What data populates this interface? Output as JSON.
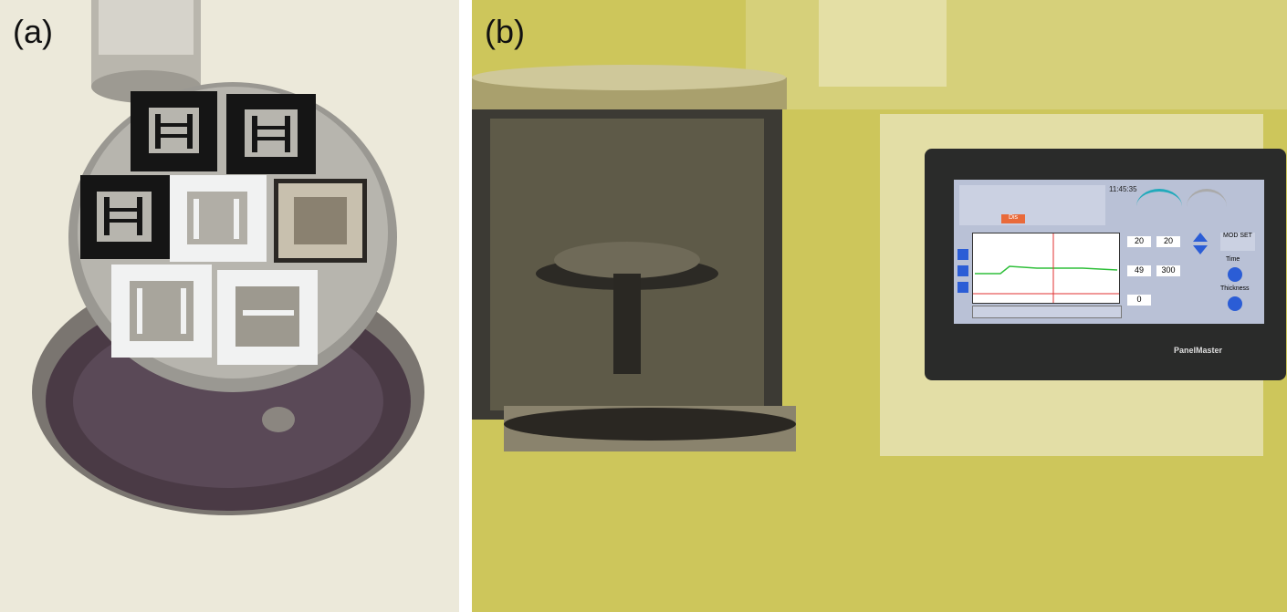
{
  "figure": {
    "panel_a": {
      "label": "(a)"
    },
    "panel_b": {
      "label": "(b)"
    }
  },
  "monitor": {
    "brand": "PanelMaster",
    "time": "11:45:35",
    "values": [
      "20",
      "20",
      "49",
      "300",
      "0"
    ],
    "xstal_button": "Dis",
    "mod_label": "MOD SET",
    "side_labels": [
      "Time",
      "Thickness"
    ]
  },
  "colors": {
    "lab_bench_a": "#e9e6d6",
    "lab_bench_b": "#cfc85a",
    "screen_bg": "#b9c1d6",
    "graph_bg": "#ffffff",
    "trace": "#2fbf3a",
    "cursor": "#e03030",
    "mask_black": "#151515",
    "mask_white": "#f1f2f2"
  }
}
